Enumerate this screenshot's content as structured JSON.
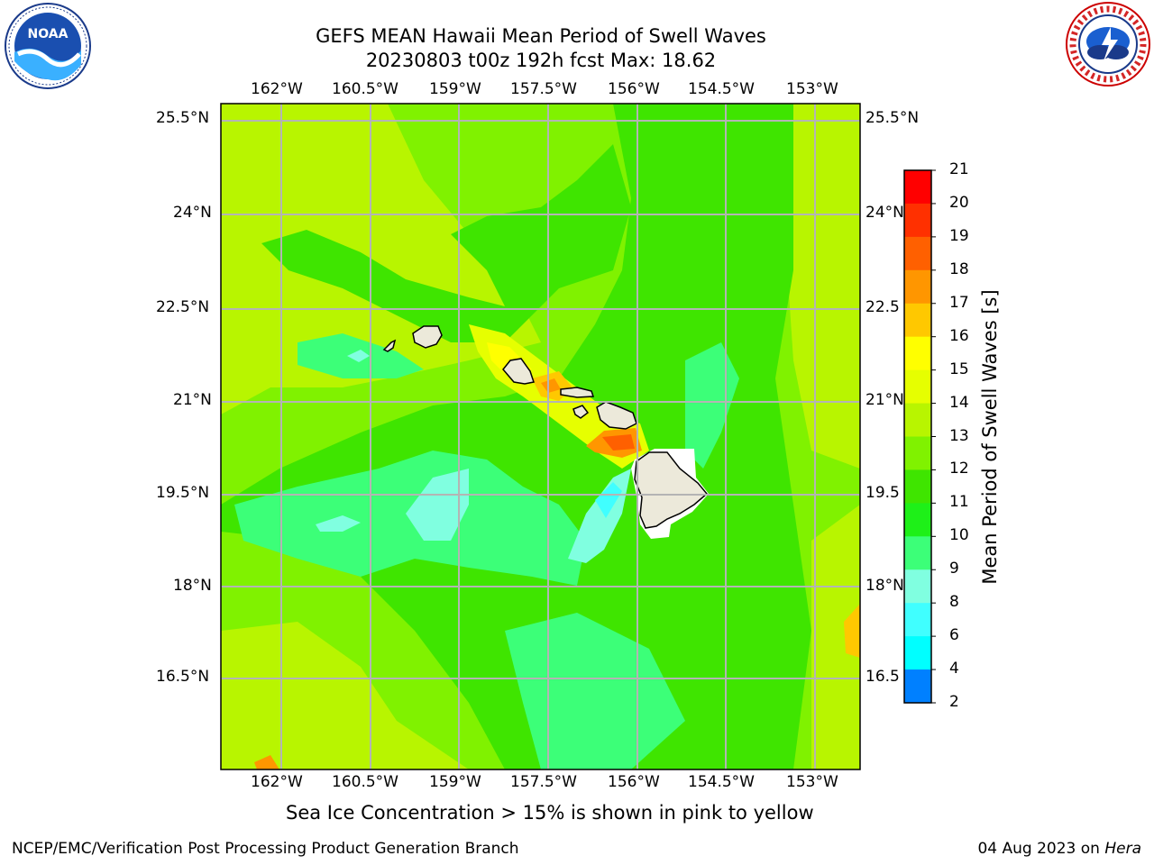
{
  "title": {
    "line1": "GEFS MEAN Hawaii Mean Period of Swell Waves",
    "line2": "20230803 t00z 192h fcst   Max: 18.62"
  },
  "logos": {
    "left": {
      "text": "NOAA",
      "icon": "noaa-logo-icon",
      "ring_text": "NATIONAL OCEANIC AND ATMOSPHERIC ADMINISTRATION · U.S. DEPARTMENT OF COMMERCE"
    },
    "right": {
      "text": "NATIONAL WEATHER SERVICE",
      "icon": "nws-logo-icon"
    }
  },
  "map": {
    "lon_labels": [
      "162°W",
      "160.5°W",
      "159°W",
      "157.5°W",
      "156°W",
      "154.5°W",
      "153°W"
    ],
    "lat_labels": [
      "25.5°N",
      "24°N",
      "22.5°N",
      "21°N",
      "19.5°N",
      "18°N",
      "16.5°N"
    ],
    "lat_labels_right": [
      "25.5°N",
      "24°N",
      "22.5",
      "21°N",
      "19.5",
      "18°N",
      "16.5"
    ],
    "colors": {
      "grid": "#b4b4b4",
      "land": "#ece9da",
      "base_field": "#55f025"
    }
  },
  "colorbar": {
    "title": "Mean Period of Swell Waves [s]",
    "ticks": [
      "21",
      "20",
      "19",
      "18",
      "17",
      "16",
      "15",
      "14",
      "13",
      "12",
      "11",
      "10",
      "9",
      "8",
      "6",
      "4",
      "2"
    ],
    "colors": [
      "#ff0000",
      "#ff3000",
      "#ff6000",
      "#ff9600",
      "#ffc800",
      "#ffff00",
      "#e6ff00",
      "#b8f500",
      "#80f200",
      "#3fe500",
      "#1ef018",
      "#3cff78",
      "#80ffe0",
      "#40ffff",
      "#00ffff",
      "#0080ff",
      "#0000ff"
    ]
  },
  "footer": {
    "note": "Sea Ice Concentration > 15% is shown in pink to yellow",
    "left": "NCEP/EMC/Verification Post Processing Product Generation Branch",
    "date": "04 Aug 2023 on ",
    "machine": "Hera"
  }
}
